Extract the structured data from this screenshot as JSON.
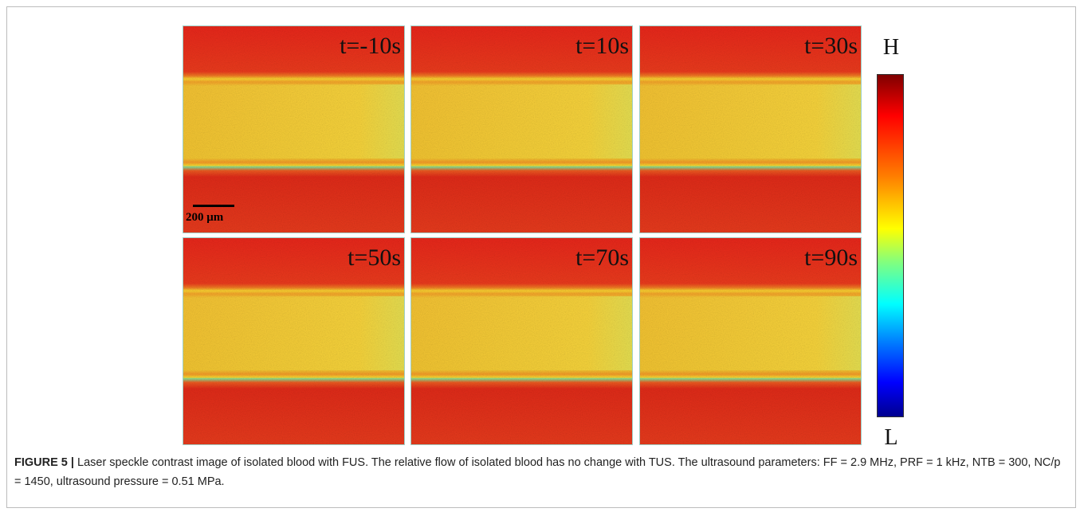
{
  "figure": {
    "panels": [
      {
        "label": "t=-10s"
      },
      {
        "label": "t=10s"
      },
      {
        "label": "t=30s"
      },
      {
        "label": "t=50s"
      },
      {
        "label": "t=70s"
      },
      {
        "label": "t=90s"
      }
    ],
    "scale_bar": "200 μm",
    "colorbar": {
      "high": "H",
      "low": "L"
    }
  },
  "caption": {
    "label": "FIGURE 5 |",
    "text": "Laser speckle contrast image of isolated blood with FUS. The relative flow of isolated blood has no change with TUS. The ultrasound parameters: FF = 2.9 MHz, PRF = 1 kHz, NTB = 300, NC/p = 1450, ultrasound pressure = 0.51 MPa."
  }
}
